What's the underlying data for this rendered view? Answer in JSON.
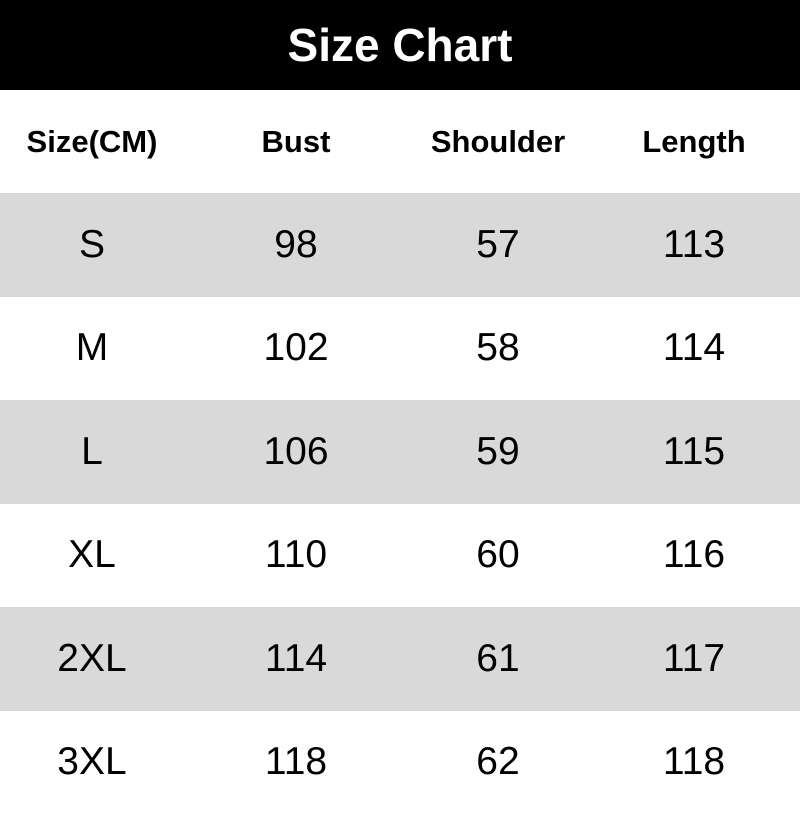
{
  "title": "Size Chart",
  "colors": {
    "header_bg": "#000000",
    "title_text": "#ffffff",
    "stripe": "#d9d9d9"
  },
  "table": {
    "headers": [
      "Size(CM)",
      "Bust",
      "Shoulder",
      "Length"
    ],
    "rows": [
      [
        "S",
        "98",
        "57",
        "113"
      ],
      [
        "M",
        "102",
        "58",
        "114"
      ],
      [
        "L",
        "106",
        "59",
        "115"
      ],
      [
        "XL",
        "110",
        "60",
        "116"
      ],
      [
        "2XL",
        "114",
        "61",
        "117"
      ],
      [
        "3XL",
        "118",
        "62",
        "118"
      ]
    ]
  }
}
